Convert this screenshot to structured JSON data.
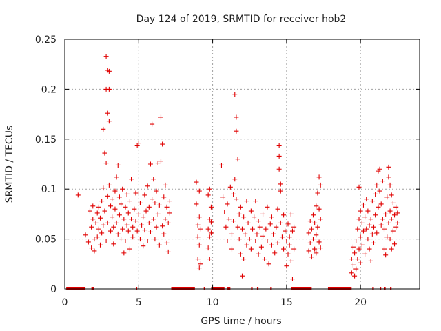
{
  "chart_data": {
    "type": "scatter",
    "title": "Day 124 of 2019, SRMTID for receiver hob2",
    "xlabel": "GPS time / hours",
    "ylabel": "SRMTID / TECUs",
    "xlim": [
      0,
      24
    ],
    "ylim": [
      0,
      0.25
    ],
    "x_ticks": [
      0,
      5,
      10,
      15,
      20
    ],
    "x_tick_labels": [
      "0",
      "5",
      "10",
      "15",
      "20"
    ],
    "y_ticks": [
      0,
      0.05,
      0.1,
      0.15,
      0.2,
      0.25
    ],
    "y_tick_labels": [
      "0",
      "0.05",
      "0.1",
      "0.15",
      "0.2",
      "0.25"
    ],
    "grid": true,
    "marker": "+",
    "color": "#e00000",
    "series": [
      {
        "name": "SRMTID",
        "points": [
          [
            0.9,
            0.094
          ],
          [
            1.4,
            0.054
          ],
          [
            1.6,
            0.047
          ],
          [
            1.7,
            0.078
          ],
          [
            1.8,
            0.062
          ],
          [
            1.8,
            0.041
          ],
          [
            1.9,
            0.07
          ],
          [
            1.9,
            0.083
          ],
          [
            2.0,
            0.05
          ],
          [
            2.0,
            0.038
          ],
          [
            2.1,
            0.066
          ],
          [
            2.2,
            0.076
          ],
          [
            2.2,
            0.052
          ],
          [
            2.3,
            0.082
          ],
          [
            2.3,
            0.06
          ],
          [
            2.4,
            0.044
          ],
          [
            2.4,
            0.071
          ],
          [
            2.5,
            0.088
          ],
          [
            2.5,
            0.056
          ],
          [
            2.6,
            0.16
          ],
          [
            2.6,
            0.064
          ],
          [
            2.6,
            0.101
          ],
          [
            2.7,
            0.136
          ],
          [
            2.7,
            0.078
          ],
          [
            2.8,
            0.233
          ],
          [
            2.8,
            0.2
          ],
          [
            2.8,
            0.126
          ],
          [
            2.8,
            0.048
          ],
          [
            2.9,
            0.219
          ],
          [
            2.9,
            0.176
          ],
          [
            2.9,
            0.093
          ],
          [
            2.9,
            0.066
          ],
          [
            3.0,
            0.218
          ],
          [
            3.0,
            0.168
          ],
          [
            3.0,
            0.2
          ],
          [
            3.0,
            0.104
          ],
          [
            3.1,
            0.083
          ],
          [
            3.1,
            0.058
          ],
          [
            3.2,
            0.072
          ],
          [
            3.2,
            0.09
          ],
          [
            3.3,
            0.045
          ],
          [
            3.3,
            0.062
          ],
          [
            3.4,
            0.098
          ],
          [
            3.4,
            0.08
          ],
          [
            3.5,
            0.066
          ],
          [
            3.5,
            0.112
          ],
          [
            3.6,
            0.055
          ],
          [
            3.6,
            0.124
          ],
          [
            3.7,
            0.074
          ],
          [
            3.7,
            0.092
          ],
          [
            3.8,
            0.05
          ],
          [
            3.8,
            0.085
          ],
          [
            3.9,
            0.1
          ],
          [
            3.9,
            0.06
          ],
          [
            4.0,
            0.07
          ],
          [
            4.0,
            0.036
          ],
          [
            4.1,
            0.082
          ],
          [
            4.1,
            0.048
          ],
          [
            4.2,
            0.064
          ],
          [
            4.2,
            0.095
          ],
          [
            4.3,
            0.058
          ],
          [
            4.3,
            0.076
          ],
          [
            4.4,
            0.04
          ],
          [
            4.4,
            0.088
          ],
          [
            4.5,
            0.07
          ],
          [
            4.5,
            0.11
          ],
          [
            4.6,
            0.062
          ],
          [
            4.6,
            0.052
          ],
          [
            4.7,
            0.08
          ],
          [
            4.8,
            0.068
          ],
          [
            4.8,
            0.096
          ],
          [
            4.9,
            0.144
          ],
          [
            4.9,
            0.058
          ],
          [
            5.0,
            0.146
          ],
          [
            5.0,
            0.075
          ],
          [
            5.1,
            0.05
          ],
          [
            5.1,
            0.086
          ],
          [
            5.2,
            0.064
          ],
          [
            5.3,
            0.072
          ],
          [
            5.3,
            0.043
          ],
          [
            5.4,
            0.094
          ],
          [
            5.4,
            0.059
          ],
          [
            5.5,
            0.078
          ],
          [
            5.6,
            0.048
          ],
          [
            5.6,
            0.103
          ],
          [
            5.7,
            0.066
          ],
          [
            5.7,
            0.082
          ],
          [
            5.8,
            0.125
          ],
          [
            5.8,
            0.057
          ],
          [
            5.9,
            0.165
          ],
          [
            5.9,
            0.09
          ],
          [
            6.0,
            0.11
          ],
          [
            6.0,
            0.07
          ],
          [
            6.1,
            0.05
          ],
          [
            6.1,
            0.086
          ],
          [
            6.2,
            0.062
          ],
          [
            6.2,
            0.098
          ],
          [
            6.3,
            0.126
          ],
          [
            6.3,
            0.075
          ],
          [
            6.4,
            0.044
          ],
          [
            6.4,
            0.084
          ],
          [
            6.5,
            0.172
          ],
          [
            6.5,
            0.128
          ],
          [
            6.6,
            0.145
          ],
          [
            6.6,
            0.063
          ],
          [
            6.7,
            0.092
          ],
          [
            6.7,
            0.055
          ],
          [
            6.8,
            0.07
          ],
          [
            6.8,
            0.104
          ],
          [
            6.9,
            0.046
          ],
          [
            6.9,
            0.082
          ],
          [
            7.0,
            0.037
          ],
          [
            7.0,
            0.066
          ],
          [
            7.1,
            0.088
          ],
          [
            7.1,
            0.076
          ],
          [
            8.9,
            0.107
          ],
          [
            8.9,
            0.085
          ],
          [
            9.0,
            0.064
          ],
          [
            9.0,
            0.052
          ],
          [
            9.0,
            0.03
          ],
          [
            9.1,
            0.098
          ],
          [
            9.1,
            0.072
          ],
          [
            9.1,
            0.044
          ],
          [
            9.1,
            0.021
          ],
          [
            9.2,
            0.06
          ],
          [
            9.2,
            0.025
          ],
          [
            9.7,
            0.094
          ],
          [
            9.7,
            0.06
          ],
          [
            9.7,
            0.041
          ],
          [
            9.8,
            0.1
          ],
          [
            9.8,
            0.07
          ],
          [
            9.8,
            0.052
          ],
          [
            9.8,
            0.03
          ],
          [
            9.9,
            0.082
          ],
          [
            9.9,
            0.067
          ],
          [
            9.9,
            0.056
          ],
          [
            10.6,
            0.124
          ],
          [
            10.7,
            0.092
          ],
          [
            10.8,
            0.077
          ],
          [
            10.9,
            0.062
          ],
          [
            11.0,
            0.085
          ],
          [
            11.0,
            0.048
          ],
          [
            11.1,
            0.07
          ],
          [
            11.2,
            0.102
          ],
          [
            11.3,
            0.055
          ],
          [
            11.3,
            0.04
          ],
          [
            11.4,
            0.095
          ],
          [
            11.4,
            0.068
          ],
          [
            11.5,
            0.195
          ],
          [
            11.5,
            0.11
          ],
          [
            11.6,
            0.172
          ],
          [
            11.6,
            0.158
          ],
          [
            11.6,
            0.09
          ],
          [
            11.7,
            0.13
          ],
          [
            11.7,
            0.062
          ],
          [
            11.8,
            0.075
          ],
          [
            11.8,
            0.05
          ],
          [
            11.9,
            0.035
          ],
          [
            11.9,
            0.082
          ],
          [
            12.0,
            0.013
          ],
          [
            12.0,
            0.06
          ],
          [
            12.1,
            0.072
          ],
          [
            12.1,
            0.03
          ],
          [
            12.2,
            0.055
          ],
          [
            12.3,
            0.088
          ],
          [
            12.3,
            0.044
          ],
          [
            12.4,
            0.066
          ],
          [
            12.5,
            0.05
          ],
          [
            12.6,
            0.078
          ],
          [
            12.6,
            0.04
          ],
          [
            12.7,
            0.06
          ],
          [
            12.8,
            0.072
          ],
          [
            12.9,
            0.048
          ],
          [
            12.9,
            0.088
          ],
          [
            13.0,
            0.055
          ],
          [
            13.1,
            0.035
          ],
          [
            13.1,
            0.068
          ],
          [
            13.2,
            0.062
          ],
          [
            13.3,
            0.042
          ],
          [
            13.4,
            0.075
          ],
          [
            13.4,
            0.053
          ],
          [
            13.5,
            0.03
          ],
          [
            13.6,
            0.06
          ],
          [
            13.7,
            0.048
          ],
          [
            13.7,
            0.082
          ],
          [
            13.8,
            0.025
          ],
          [
            13.9,
            0.065
          ],
          [
            14.0,
            0.044
          ],
          [
            14.0,
            0.072
          ],
          [
            14.1,
            0.055
          ],
          [
            14.2,
            0.036
          ],
          [
            14.3,
            0.062
          ],
          [
            14.4,
            0.08
          ],
          [
            14.4,
            0.046
          ],
          [
            14.5,
            0.144
          ],
          [
            14.5,
            0.133
          ],
          [
            14.5,
            0.12
          ],
          [
            14.6,
            0.105
          ],
          [
            14.6,
            0.098
          ],
          [
            14.6,
            0.066
          ],
          [
            14.7,
            0.052
          ],
          [
            14.8,
            0.074
          ],
          [
            14.8,
            0.04
          ],
          [
            14.9,
            0.058
          ],
          [
            15.0,
            0.023
          ],
          [
            15.0,
            0.048
          ],
          [
            15.1,
            0.065
          ],
          [
            15.1,
            0.035
          ],
          [
            15.2,
            0.052
          ],
          [
            15.2,
            0.044
          ],
          [
            15.3,
            0.075
          ],
          [
            15.3,
            0.028
          ],
          [
            15.4,
            0.058
          ],
          [
            15.4,
            0.01
          ],
          [
            15.5,
            0.04
          ],
          [
            15.5,
            0.062
          ],
          [
            16.5,
            0.056
          ],
          [
            16.5,
            0.038
          ],
          [
            16.6,
            0.068
          ],
          [
            16.6,
            0.046
          ],
          [
            16.7,
            0.032
          ],
          [
            16.7,
            0.06
          ],
          [
            16.8,
            0.074
          ],
          [
            16.8,
            0.05
          ],
          [
            16.9,
            0.04
          ],
          [
            16.9,
            0.066
          ],
          [
            17.0,
            0.083
          ],
          [
            17.0,
            0.054
          ],
          [
            17.0,
            0.036
          ],
          [
            17.1,
            0.096
          ],
          [
            17.1,
            0.062
          ],
          [
            17.2,
            0.112
          ],
          [
            17.2,
            0.08
          ],
          [
            17.2,
            0.047
          ],
          [
            17.3,
            0.104
          ],
          [
            17.3,
            0.07
          ],
          [
            17.3,
            0.041
          ],
          [
            19.4,
            0.03
          ],
          [
            19.4,
            0.016
          ],
          [
            19.5,
            0.042
          ],
          [
            19.5,
            0.024
          ],
          [
            19.6,
            0.036
          ],
          [
            19.6,
            0.013
          ],
          [
            19.7,
            0.048
          ],
          [
            19.7,
            0.02
          ],
          [
            19.8,
            0.06
          ],
          [
            19.8,
            0.03
          ],
          [
            19.9,
            0.102
          ],
          [
            19.9,
            0.07
          ],
          [
            19.9,
            0.04
          ],
          [
            20.0,
            0.078
          ],
          [
            20.0,
            0.052
          ],
          [
            20.0,
            0.026
          ],
          [
            20.1,
            0.066
          ],
          [
            20.1,
            0.044
          ],
          [
            20.2,
            0.084
          ],
          [
            20.2,
            0.058
          ],
          [
            20.3,
            0.072
          ],
          [
            20.3,
            0.035
          ],
          [
            20.4,
            0.09
          ],
          [
            20.4,
            0.06
          ],
          [
            20.5,
            0.05
          ],
          [
            20.5,
            0.078
          ],
          [
            20.6,
            0.064
          ],
          [
            20.6,
            0.04
          ],
          [
            20.7,
            0.07
          ],
          [
            20.7,
            0.028
          ],
          [
            20.8,
            0.055
          ],
          [
            20.8,
            0.088
          ],
          [
            20.9,
            0.062
          ],
          [
            20.9,
            0.046
          ],
          [
            21.0,
            0.095
          ],
          [
            21.0,
            0.074
          ],
          [
            21.1,
            0.104
          ],
          [
            21.1,
            0.056
          ],
          [
            21.2,
            0.118
          ],
          [
            21.2,
            0.082
          ],
          [
            21.3,
            0.12
          ],
          [
            21.3,
            0.098
          ],
          [
            21.4,
            0.085
          ],
          [
            21.4,
            0.064
          ],
          [
            21.5,
            0.108
          ],
          [
            21.5,
            0.07
          ],
          [
            21.6,
            0.04
          ],
          [
            21.6,
            0.06
          ],
          [
            21.7,
            0.034
          ],
          [
            21.7,
            0.075
          ],
          [
            21.8,
            0.052
          ],
          [
            21.8,
            0.092
          ],
          [
            21.9,
            0.122
          ],
          [
            21.9,
            0.112
          ],
          [
            21.9,
            0.066
          ],
          [
            22.0,
            0.104
          ],
          [
            22.0,
            0.078
          ],
          [
            22.0,
            0.05
          ],
          [
            22.1,
            0.094
          ],
          [
            22.1,
            0.07
          ],
          [
            22.1,
            0.04
          ],
          [
            22.2,
            0.086
          ],
          [
            22.2,
            0.058
          ],
          [
            22.3,
            0.074
          ],
          [
            22.3,
            0.045
          ],
          [
            22.4,
            0.082
          ],
          [
            22.4,
            0.062
          ],
          [
            22.5,
            0.076
          ],
          [
            22.5,
            0.066
          ]
        ]
      }
    ],
    "zero_baseline_segments": [
      [
        0.1,
        1.4
      ],
      [
        1.8,
        2.0
      ],
      [
        4.8,
        4.9
      ],
      [
        7.2,
        8.8
      ],
      [
        9.4,
        9.5
      ],
      [
        9.9,
        10.8
      ],
      [
        11.0,
        11.2
      ],
      [
        12.6,
        12.7
      ],
      [
        13.0,
        13.1
      ],
      [
        13.9,
        14.0
      ],
      [
        15.3,
        16.7
      ],
      [
        17.8,
        19.4
      ],
      [
        20.8,
        20.9
      ],
      [
        21.3,
        21.4
      ],
      [
        21.6,
        21.7
      ],
      [
        22.0,
        22.1
      ]
    ]
  }
}
